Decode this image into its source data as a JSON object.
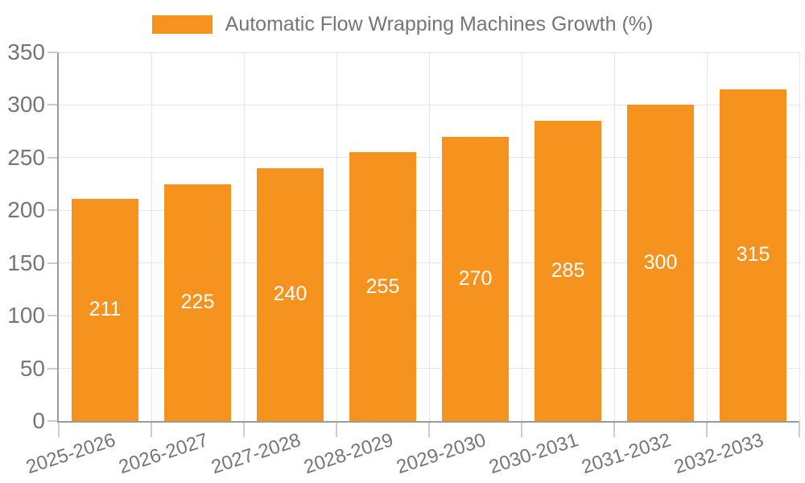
{
  "legend": {
    "label": "Automatic Flow Wrapping Machines Growth (%)"
  },
  "colors": {
    "bar": "#F6921E",
    "grid": "#E5E5E5",
    "axis": "#9B9B9B",
    "tick": "#CCCCCC",
    "axis_label": "#757575",
    "value_label": "#FFFFFF",
    "background": "#FFFFFF"
  },
  "chart_data": {
    "type": "bar",
    "title": "Automatic Flow Wrapping Machines Growth (%)",
    "categories": [
      "2025-2026",
      "2026-2027",
      "2027-2028",
      "2028-2029",
      "2029-2030",
      "2030-2031",
      "2031-2032",
      "2032-2033"
    ],
    "values": [
      211,
      225,
      240,
      255,
      270,
      285,
      300,
      315
    ],
    "xlabel": "",
    "ylabel": "",
    "ylim": [
      0,
      350
    ],
    "yticks": [
      0,
      50,
      100,
      150,
      200,
      250,
      300,
      350
    ],
    "grid": "on",
    "legend_position": "top-center",
    "value_label_position": "inside-middle",
    "x_label_rotation_deg": -18
  }
}
